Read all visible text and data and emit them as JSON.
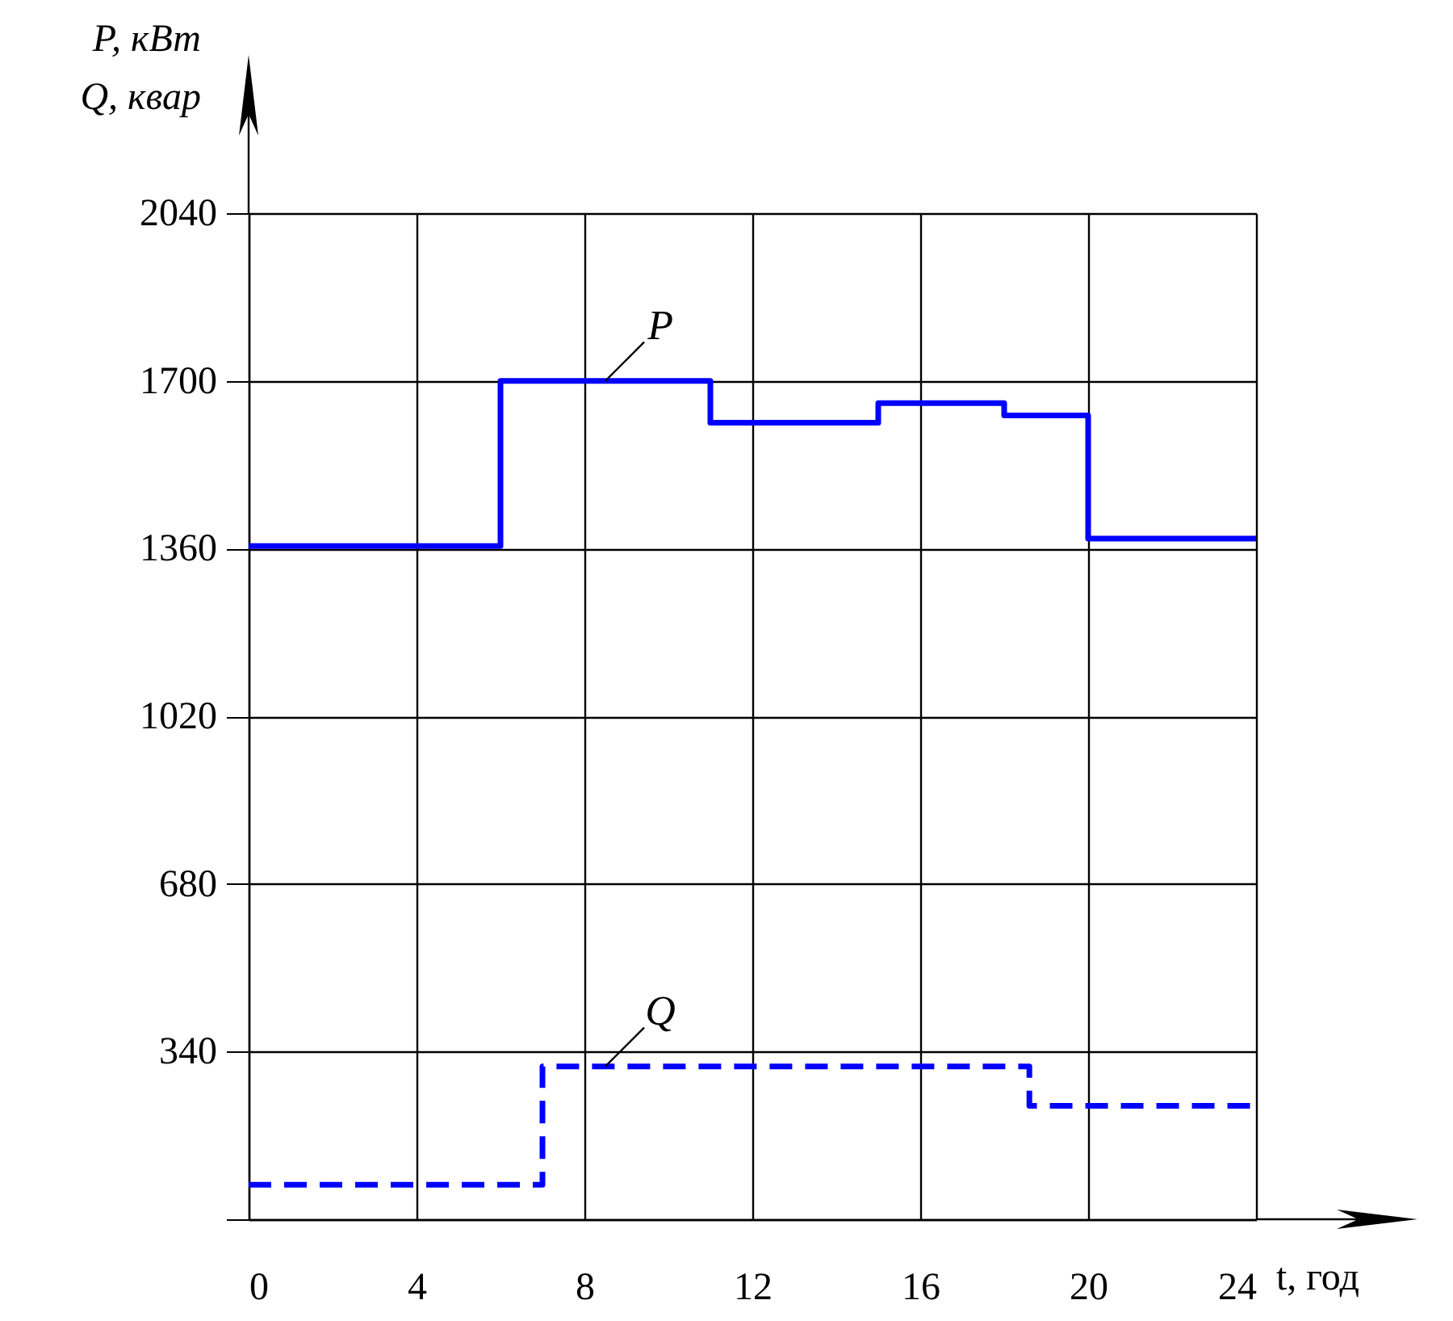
{
  "chart_data": {
    "type": "step",
    "xlabel": "t, год",
    "ylabel": [
      "P, кВт",
      "Q, квар"
    ],
    "xlim": [
      0,
      24
    ],
    "xticks": [
      {
        "value": 0,
        "label": "0"
      },
      4,
      8,
      12,
      16,
      20,
      24
    ],
    "ylim": [
      0,
      2040
    ],
    "yticks": [
      {
        "value": 0,
        "label": null
      },
      340,
      680,
      1020,
      1360,
      1700,
      2040
    ],
    "grid": true,
    "series": [
      {
        "name": "P",
        "color": "#0000ff",
        "line_style": "solid",
        "x": [
          0,
          6,
          11,
          15,
          18,
          20,
          24
        ],
        "values": [
          1365,
          1700,
          1615,
          1655,
          1630,
          1380,
          1380
        ]
      },
      {
        "name": "Q",
        "color": "#0000ff",
        "line_style": "dashed",
        "x": [
          0,
          7,
          18.6,
          24
        ],
        "values": [
          70,
          310,
          230,
          230
        ]
      }
    ]
  }
}
